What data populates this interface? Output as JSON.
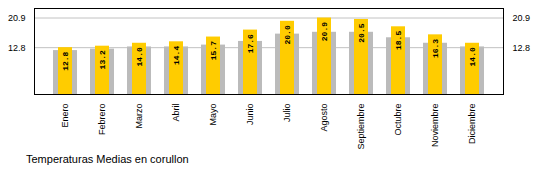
{
  "chart_data": {
    "type": "bar",
    "title": "Temperaturas Medias en corullon",
    "categories": [
      "Enero",
      "Febrero",
      "Marzo",
      "Abril",
      "Mayo",
      "Junio",
      "Julio",
      "Agosto",
      "Septiembre",
      "Octubre",
      "Noviembre",
      "Diciembre"
    ],
    "series": [
      {
        "color": "#BBBBBB",
        "values": [
          12.0,
          12.4,
          13.0,
          13.0,
          13.5,
          14.5,
          16.5,
          17.0,
          17.0,
          15.5,
          14.0,
          13.0
        ]
      },
      {
        "color": "#FFCC00",
        "values": [
          12.8,
          13.2,
          14.0,
          14.4,
          15.7,
          17.6,
          20.0,
          20.9,
          20.5,
          18.5,
          16.3,
          14.0
        ],
        "value_labels": [
          "12.8",
          "13.2",
          "14.0",
          "14.4",
          "15.7",
          "17.6",
          "20.0",
          "20.9",
          "20.5",
          "18.5",
          "16.3",
          "14.0"
        ]
      }
    ],
    "ylim": [
      0,
      23.5
    ],
    "yticks": [
      12.8,
      20.9
    ],
    "grid": true,
    "data_labels": true
  }
}
